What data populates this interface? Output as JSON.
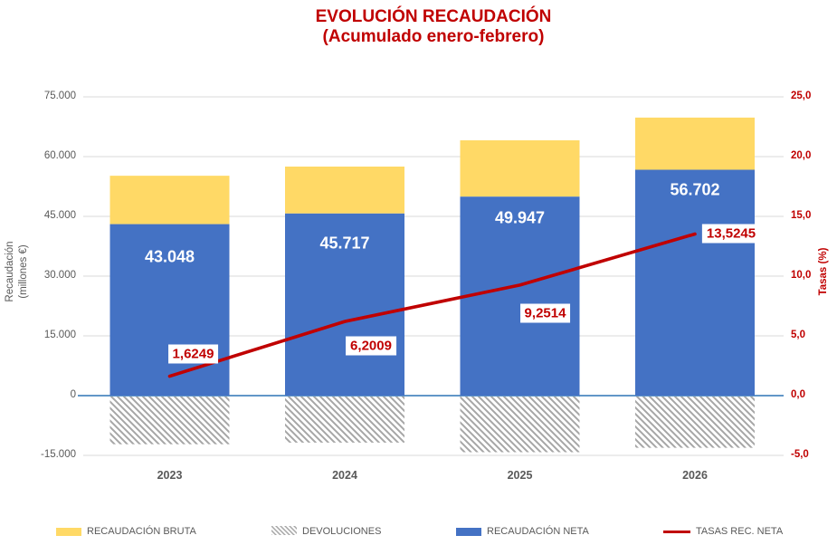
{
  "title": {
    "line1": "EVOLUCIÓN RECAUDACIÓN",
    "line2": "(Acumulado enero-febrero)"
  },
  "colors": {
    "bar_blue": "#4472C4",
    "bar_yellow": "#FFD966",
    "hatch_gray": "#A6A6A6",
    "line_red": "#C00000",
    "title_red": "#C00000",
    "axis_text_gray": "#595959",
    "right_axis_red": "#C00000",
    "gridline": "#D9D9D9",
    "zero_line_blue": "#2E75B6",
    "bar_label_white": "#FFFFFF"
  },
  "chart_data": {
    "type": "combo: stacked bars (left axis) + line (right axis)",
    "categories": [
      "2023",
      "2024",
      "2025",
      "2026"
    ],
    "left_axis": {
      "title": [
        "Recaudación",
        "(millones €)"
      ],
      "tick_labels": [
        "75.000",
        "60.000",
        "45.000",
        "30.000",
        "15.000",
        "0",
        "-15.000"
      ],
      "tick_values": [
        75000,
        60000,
        45000,
        30000,
        15000,
        0,
        -15000
      ],
      "range": [
        -15000,
        75000
      ],
      "gridlines": true
    },
    "right_axis": {
      "title": "Tasas (%)",
      "tick_labels": [
        "25,0",
        "20,0",
        "15,0",
        "10,0",
        "5,0",
        "0,0",
        "-5,0"
      ],
      "tick_values": [
        25,
        20,
        15,
        10,
        5,
        0,
        -5
      ],
      "range": [
        -5,
        25
      ]
    },
    "series": [
      {
        "name": "RECAUDACIÓN BRUTA",
        "type": "bar",
        "color": "#FFD966",
        "values": [
          55200,
          57500,
          64100,
          69800
        ]
      },
      {
        "name": "DEVOLUCIONES",
        "type": "bar",
        "fill": "diagonal-hatch",
        "values": [
          -12200,
          -11800,
          -14200,
          -13100
        ]
      },
      {
        "name": "RECAUDACIÓN NETA",
        "type": "bar",
        "color": "#4472C4",
        "values": [
          43048,
          45717,
          49947,
          56702
        ],
        "data_labels": [
          "43.048",
          "45.717",
          "49.947",
          "56.702"
        ]
      },
      {
        "name": "TASAS REC. NETA",
        "type": "line",
        "axis": "right",
        "color": "#C00000",
        "values": [
          1.6249,
          6.2009,
          9.2514,
          13.5245
        ],
        "data_labels": [
          "1,6249",
          "6,2009",
          "9,2514",
          "13,5245"
        ]
      }
    ],
    "legend_position": "bottom"
  }
}
